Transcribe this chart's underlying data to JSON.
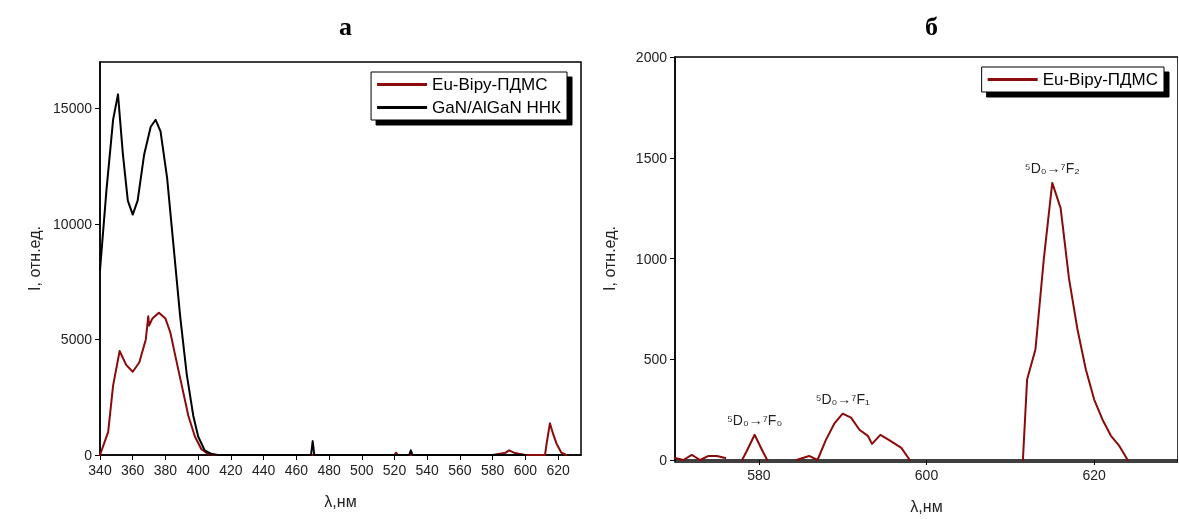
{
  "chart_data": [
    {
      "type": "line",
      "title": "а",
      "xlabel": "λ,нм",
      "ylabel": "I, отн.ед.",
      "xlim": [
        340,
        634
      ],
      "ylim": [
        0,
        17000
      ],
      "xticks": [
        340,
        360,
        380,
        400,
        420,
        440,
        460,
        480,
        500,
        520,
        540,
        560,
        580,
        600,
        620
      ],
      "yticks": [
        0,
        5000,
        10000,
        15000
      ],
      "grid": false,
      "legend": "top right",
      "marker": "none",
      "line_style": "solid",
      "series": [
        {
          "name": "Eu-Bipy-ПДМС",
          "color": "#8b0a0a",
          "x": [
            340,
            345,
            348,
            352,
            356,
            360,
            364,
            368,
            369.5,
            370,
            372,
            376,
            380,
            383,
            386,
            390,
            394,
            398,
            402,
            406,
            410,
            470,
            520,
            521,
            522,
            580,
            588,
            590,
            593,
            596,
            600,
            612,
            613,
            615,
            617,
            619,
            622,
            625
          ],
          "values": [
            0,
            1000,
            3000,
            4500,
            3900,
            3600,
            4000,
            5000,
            6000,
            5600,
            5900,
            6150,
            5900,
            5300,
            4300,
            3000,
            1700,
            800,
            250,
            50,
            0,
            0,
            0,
            100,
            0,
            0,
            100,
            200,
            100,
            50,
            0,
            0,
            500,
            1370,
            900,
            500,
            100,
            0
          ]
        },
        {
          "name": "GaN/AlGaN ННК",
          "color": "#000000",
          "x": [
            340,
            344,
            348,
            351,
            354,
            357,
            360,
            363,
            367,
            371,
            374,
            377,
            381,
            385,
            389,
            393,
            397,
            400,
            404,
            408,
            412,
            469,
            470,
            471,
            529,
            530,
            531,
            600
          ],
          "values": [
            8000,
            11500,
            14500,
            15600,
            13000,
            11000,
            10400,
            11000,
            13000,
            14200,
            14500,
            14000,
            12000,
            9000,
            6000,
            3500,
            1700,
            800,
            200,
            50,
            0,
            0,
            600,
            0,
            0,
            200,
            0,
            0
          ]
        }
      ]
    },
    {
      "type": "line",
      "title": "б",
      "xlabel": "λ,нм",
      "ylabel": "I, отн.ед.",
      "xlim": [
        570,
        630
      ],
      "ylim": [
        0,
        2000
      ],
      "xticks": [
        580,
        600,
        620
      ],
      "yticks": [
        0,
        500,
        1000,
        1500,
        2000
      ],
      "grid": false,
      "legend": "top right",
      "marker": "none",
      "line_style": "solid",
      "annotations": [
        {
          "text": "⁵D₀→⁷F₀",
          "x": 579.5,
          "y": 125
        },
        {
          "text": "⁵D₀→⁷F₁",
          "x": 590,
          "y": 230
        },
        {
          "text": "⁵D₀→⁷F₂",
          "x": 615,
          "y": 1375
        }
      ],
      "series": [
        {
          "name": "Eu-Bipy-ПДМС",
          "color": "#8b0a0a",
          "x": [
            570,
            571,
            572,
            573,
            574,
            575,
            576,
            577,
            578,
            578.5,
            579.5,
            580.5,
            581,
            584,
            584.5,
            586,
            587,
            588,
            589,
            590,
            591,
            592,
            593,
            593.5,
            594.5,
            595.5,
            597,
            598,
            605,
            611.5,
            612,
            613,
            614,
            615,
            616,
            617,
            618,
            619,
            620,
            621,
            622,
            623,
            624
          ],
          "values": [
            10,
            0,
            25,
            0,
            20,
            20,
            10,
            null,
            0,
            40,
            125,
            40,
            0,
            null,
            0,
            20,
            0,
            100,
            180,
            230,
            210,
            150,
            120,
            80,
            125,
            100,
            60,
            0,
            null,
            0,
            400,
            550,
            1000,
            1375,
            1250,
            900,
            650,
            450,
            300,
            200,
            120,
            70,
            0
          ]
        }
      ]
    }
  ]
}
